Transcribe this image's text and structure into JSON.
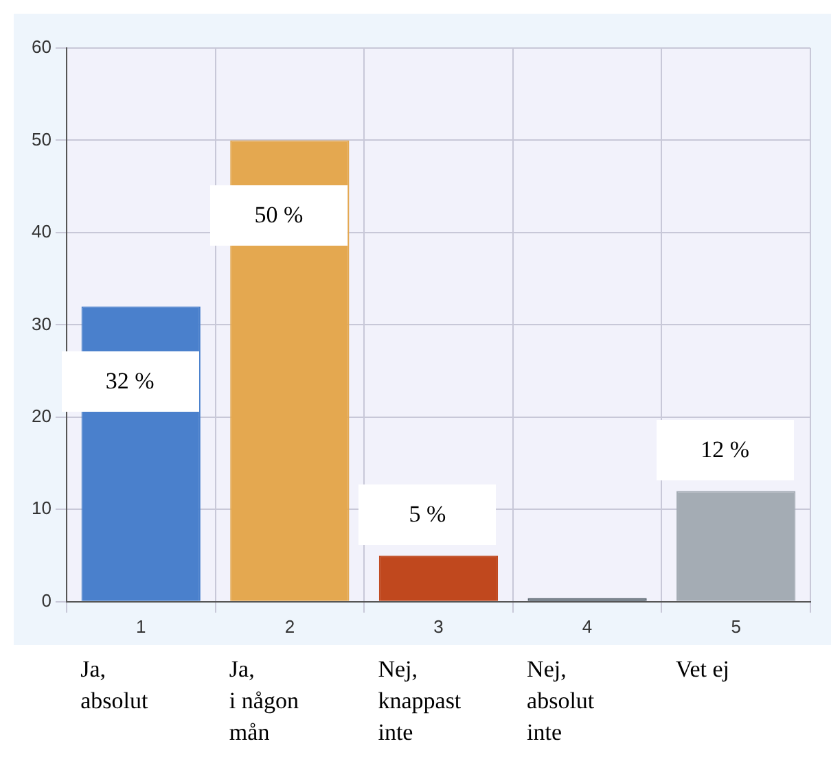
{
  "chart_data": {
    "type": "bar",
    "categories": [
      "1",
      "2",
      "3",
      "4",
      "5"
    ],
    "values": [
      32,
      50,
      5,
      0.4,
      12
    ],
    "colors": [
      "#4a80cc",
      "#e4a850",
      "#c0481e",
      "#5a6670",
      "#a4acb4"
    ],
    "value_labels": [
      "32 %",
      "50 %",
      "5 %",
      null,
      "12 %"
    ],
    "annotations": [
      "Ja,\nabsolut",
      "Ja,\ni någon\nmån",
      "Nej,\nknappast\ninte",
      "Nej,\nabsolut\ninte",
      "Vet ej"
    ],
    "ylim": [
      0,
      60
    ],
    "yticks": [
      0,
      10,
      20,
      30,
      40,
      50,
      60
    ],
    "grid": true,
    "legend": false
  }
}
